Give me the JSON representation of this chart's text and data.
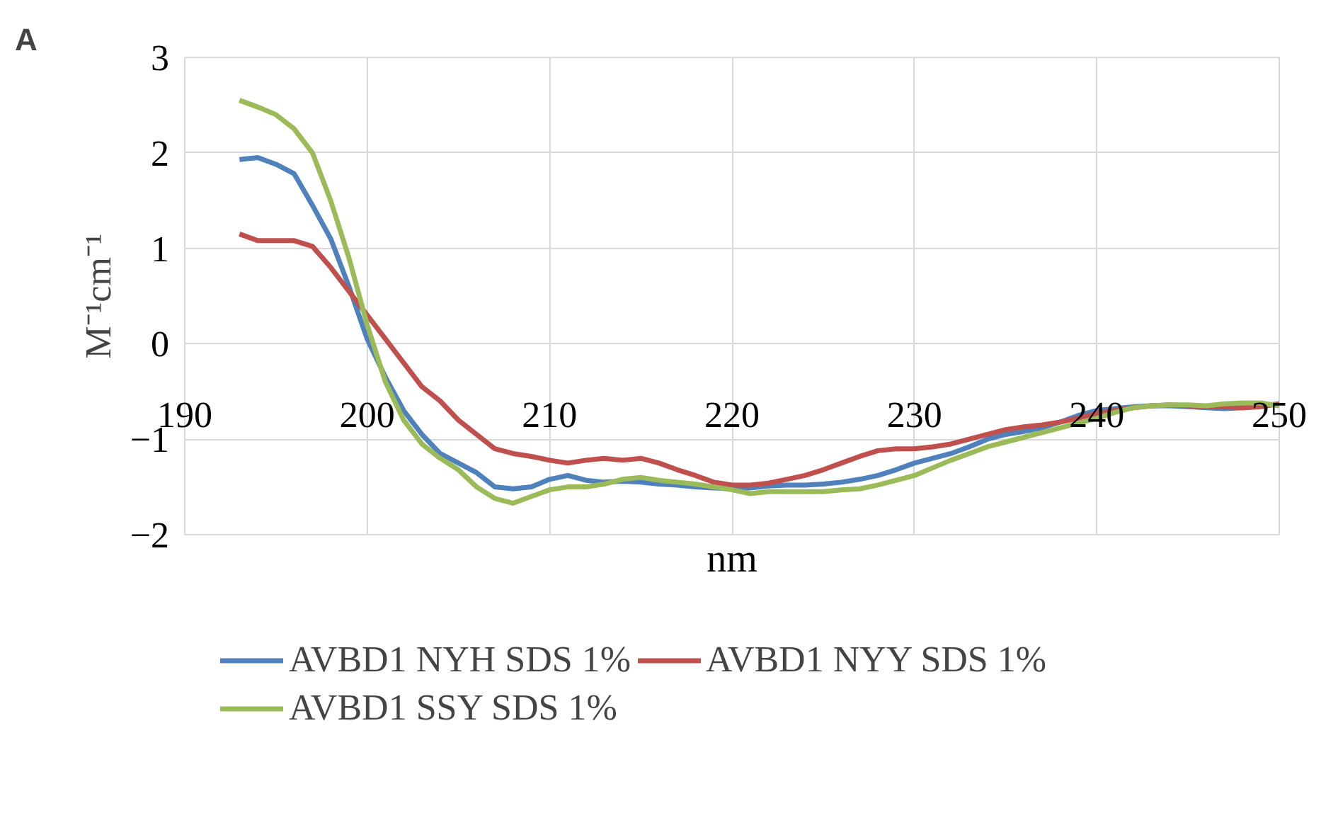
{
  "chart_data": {
    "type": "line",
    "xlabel": "nm",
    "ylabel": "M⁻¹cm⁻¹",
    "annotations": [
      "A"
    ],
    "x": [
      193,
      194,
      195,
      196,
      197,
      198,
      199,
      200,
      201,
      202,
      203,
      204,
      205,
      206,
      207,
      208,
      209,
      210,
      211,
      212,
      213,
      214,
      215,
      216,
      217,
      218,
      219,
      220,
      221,
      222,
      223,
      224,
      225,
      226,
      227,
      228,
      229,
      230,
      231,
      232,
      233,
      234,
      235,
      236,
      237,
      238,
      239,
      240,
      241,
      242,
      243,
      244,
      245,
      246,
      247,
      248,
      249,
      250
    ],
    "series": [
      {
        "name": "AVBD1 NYH SDS 1%",
        "color": "#4f81bd",
        "values": [
          1.93,
          1.95,
          1.88,
          1.78,
          1.45,
          1.1,
          0.6,
          0.05,
          -0.35,
          -0.7,
          -0.95,
          -1.15,
          -1.25,
          -1.35,
          -1.5,
          -1.52,
          -1.5,
          -1.42,
          -1.38,
          -1.43,
          -1.45,
          -1.44,
          -1.45,
          -1.47,
          -1.48,
          -1.5,
          -1.51,
          -1.52,
          -1.51,
          -1.49,
          -1.48,
          -1.48,
          -1.47,
          -1.45,
          -1.42,
          -1.38,
          -1.32,
          -1.25,
          -1.2,
          -1.15,
          -1.08,
          -1.0,
          -0.95,
          -0.92,
          -0.88,
          -0.82,
          -0.75,
          -0.7,
          -0.68,
          -0.66,
          -0.65,
          -0.65,
          -0.66,
          -0.67,
          -0.68,
          -0.67,
          -0.65,
          -0.63
        ]
      },
      {
        "name": "AVBD1 NYY SDS 1%",
        "color": "#c0504d",
        "values": [
          1.15,
          1.08,
          1.08,
          1.08,
          1.02,
          0.8,
          0.55,
          0.3,
          0.05,
          -0.2,
          -0.45,
          -0.6,
          -0.8,
          -0.95,
          -1.1,
          -1.15,
          -1.18,
          -1.22,
          -1.25,
          -1.22,
          -1.2,
          -1.22,
          -1.2,
          -1.25,
          -1.32,
          -1.38,
          -1.45,
          -1.48,
          -1.48,
          -1.46,
          -1.42,
          -1.38,
          -1.32,
          -1.25,
          -1.18,
          -1.12,
          -1.1,
          -1.1,
          -1.08,
          -1.05,
          -1.0,
          -0.95,
          -0.9,
          -0.87,
          -0.85,
          -0.82,
          -0.78,
          -0.73,
          -0.7,
          -0.67,
          -0.65,
          -0.64,
          -0.65,
          -0.66,
          -0.66,
          -0.67,
          -0.66,
          -0.63
        ]
      },
      {
        "name": "AVBD1 SSY SDS 1%",
        "color": "#9bbb59",
        "values": [
          2.55,
          2.48,
          2.4,
          2.25,
          2.0,
          1.5,
          0.9,
          0.2,
          -0.4,
          -0.8,
          -1.05,
          -1.2,
          -1.32,
          -1.5,
          -1.62,
          -1.67,
          -1.6,
          -1.53,
          -1.5,
          -1.5,
          -1.47,
          -1.42,
          -1.4,
          -1.43,
          -1.45,
          -1.47,
          -1.5,
          -1.53,
          -1.57,
          -1.55,
          -1.55,
          -1.55,
          -1.55,
          -1.53,
          -1.52,
          -1.48,
          -1.43,
          -1.38,
          -1.3,
          -1.22,
          -1.15,
          -1.08,
          -1.03,
          -0.98,
          -0.93,
          -0.88,
          -0.83,
          -0.78,
          -0.72,
          -0.67,
          -0.65,
          -0.64,
          -0.64,
          -0.65,
          -0.63,
          -0.62,
          -0.62,
          -0.65
        ]
      }
    ],
    "xlim": [
      190,
      250
    ],
    "xticks": [
      190,
      200,
      210,
      220,
      230,
      240,
      250
    ],
    "ylim": [
      -2,
      3
    ],
    "yticks": [
      -2,
      -1,
      0,
      1,
      2,
      3
    ],
    "grid": true,
    "legend": "bottom",
    "marker": "none",
    "line_style": "solid"
  }
}
